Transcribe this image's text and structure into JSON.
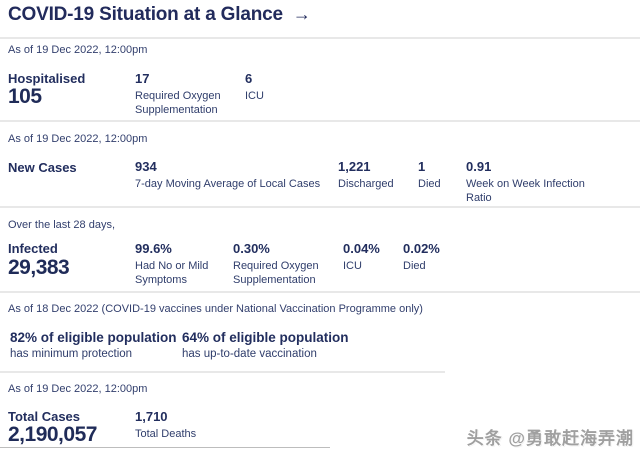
{
  "page": {
    "title": "COVID-19 Situation at a Glance",
    "title_arrow": "→",
    "watermark": "头条 @勇敢赶海弄潮"
  },
  "sections": {
    "hospitalised": {
      "as_of": "As of 19 Dec 2022, 12:00pm",
      "label": "Hospitalised",
      "value": "105",
      "stats": [
        {
          "value": "17",
          "label": "Required Oxygen Supplementation"
        },
        {
          "value": "6",
          "label": "ICU"
        }
      ]
    },
    "new_cases": {
      "as_of": "As of 19 Dec 2022, 12:00pm",
      "label": "New Cases",
      "stats": [
        {
          "value": "934",
          "label": "7-day Moving Average of Local Cases"
        },
        {
          "value": "1,221",
          "label": "Discharged"
        },
        {
          "value": "1",
          "label": "Died"
        },
        {
          "value": "0.91",
          "label": "Week on Week Infection Ratio"
        }
      ]
    },
    "infected": {
      "as_of": "Over the last 28 days,",
      "label": "Infected",
      "value": "29,383",
      "stats": [
        {
          "value": "99.6%",
          "label": "Had No or Mild Symptoms"
        },
        {
          "value": "0.30%",
          "label": "Required Oxygen Supplementation"
        },
        {
          "value": "0.04%",
          "label": "ICU"
        },
        {
          "value": "0.02%",
          "label": "Died"
        }
      ]
    },
    "vaccination": {
      "as_of": "As of 18 Dec 2022 (COVID-19 vaccines under National Vaccination Programme only)",
      "stats": [
        {
          "value": "82% of eligible population",
          "label": "has minimum protection"
        },
        {
          "value": "64% of eligible population",
          "label": "has up-to-date vaccination"
        }
      ]
    },
    "totals": {
      "as_of": "As of 19 Dec 2022, 12:00pm",
      "label": "Total Cases",
      "value": "2,190,057",
      "stats": [
        {
          "value": "1,710",
          "label": "Total Deaths"
        }
      ]
    }
  }
}
